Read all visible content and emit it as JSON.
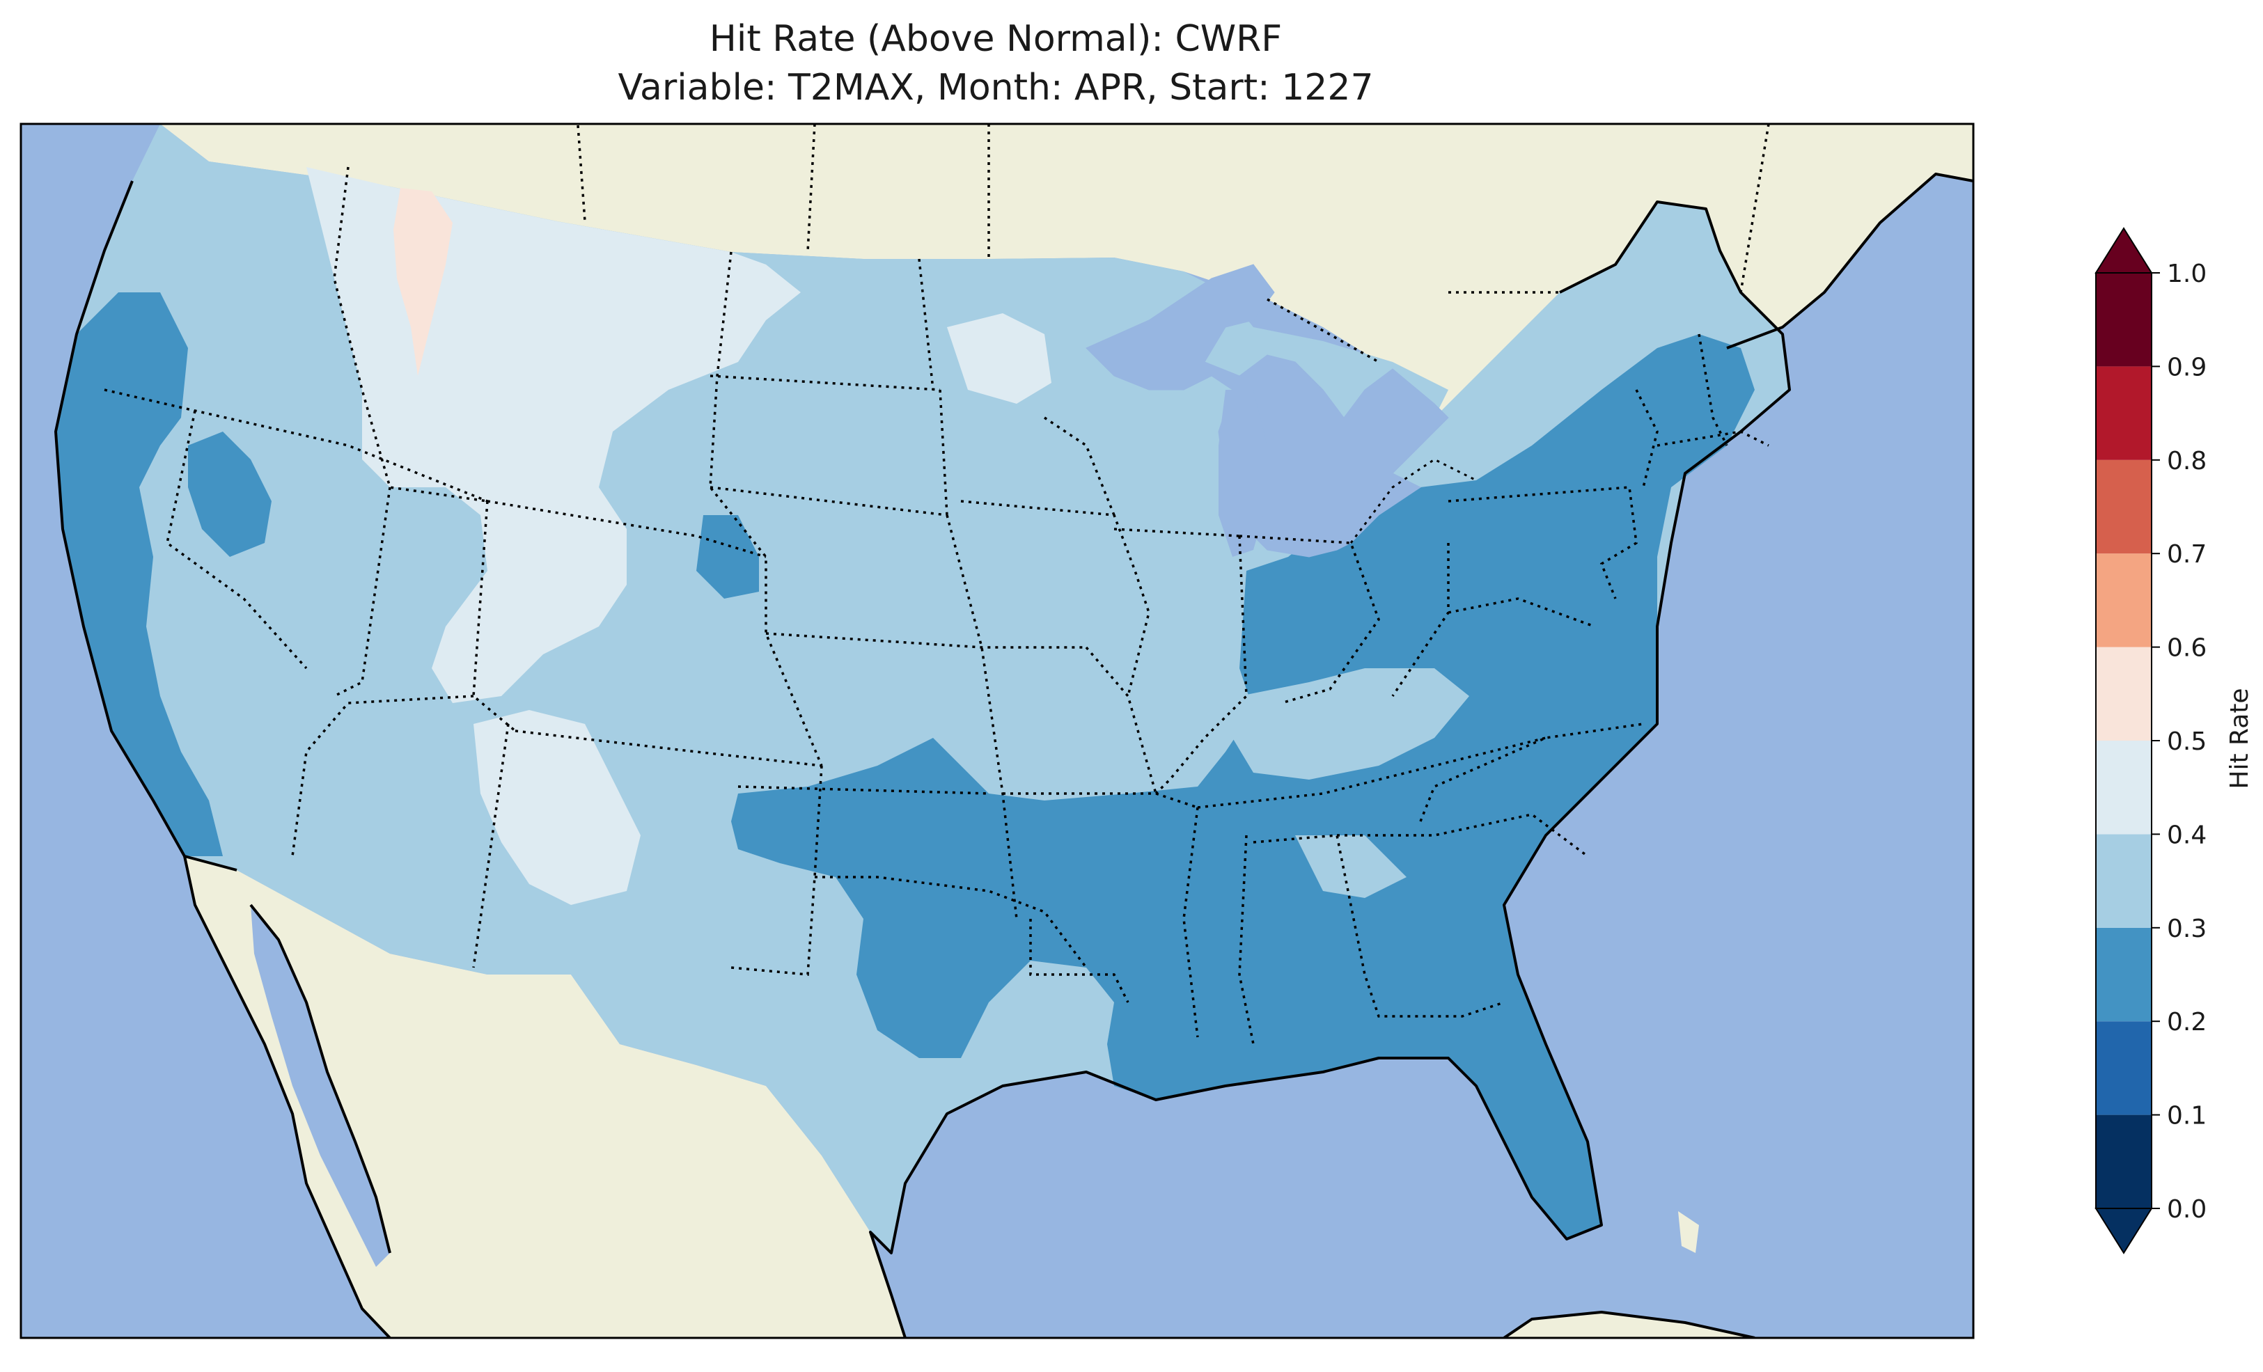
{
  "title": {
    "line1": "Hit Rate (Above Normal): CWRF",
    "line2": "Variable: T2MAX, Month: APR, Start: 1227"
  },
  "colors": {
    "ocean": "#97b6e1",
    "land": "#efefdb",
    "frame": "#000000"
  },
  "colorbar": {
    "label": "Hit Rate",
    "ticks": [
      "0.0",
      "0.1",
      "0.2",
      "0.3",
      "0.4",
      "0.5",
      "0.6",
      "0.7",
      "0.8",
      "0.9",
      "1.0"
    ],
    "bins": [
      {
        "from": 0.0,
        "to": 0.1,
        "color": "#053061"
      },
      {
        "from": 0.1,
        "to": 0.2,
        "color": "#2166ac"
      },
      {
        "from": 0.2,
        "to": 0.3,
        "color": "#4393c3"
      },
      {
        "from": 0.3,
        "to": 0.4,
        "color": "#a6cee3"
      },
      {
        "from": 0.4,
        "to": 0.5,
        "color": "#deebf2"
      },
      {
        "from": 0.5,
        "to": 0.6,
        "color": "#f9e4da"
      },
      {
        "from": 0.6,
        "to": 0.7,
        "color": "#f4a582"
      },
      {
        "from": 0.7,
        "to": 0.8,
        "color": "#d6604d"
      },
      {
        "from": 0.8,
        "to": 0.9,
        "color": "#b2182b"
      },
      {
        "from": 0.9,
        "to": 1.0,
        "color": "#67001f"
      }
    ],
    "extend": "both"
  }
}
